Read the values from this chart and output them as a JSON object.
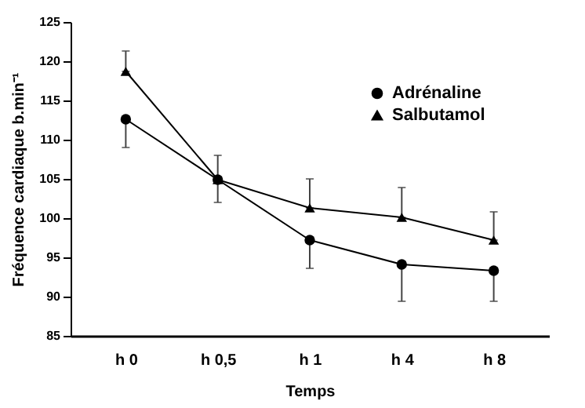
{
  "chart_data": {
    "type": "line",
    "xlabel": "Temps",
    "ylabel": "Fréquence cardiaque b.min⁻¹",
    "categories": [
      "h 0",
      "h 0,5",
      "h 1",
      "h 4",
      "h 8"
    ],
    "series": [
      {
        "name": "Adrénaline",
        "color": "#000000",
        "marker": "circle",
        "values": [
          112.6,
          104.9,
          97.2,
          94.1,
          93.3
        ],
        "errors": [
          [
            109,
            112.6
          ],
          [
            102,
            104.9
          ],
          [
            93.6,
            97.2
          ],
          [
            89.4,
            94.1
          ],
          [
            89.4,
            93.3
          ]
        ]
      },
      {
        "name": "Salbutamol",
        "color": "#000000",
        "marker": "triangle",
        "values": [
          118.7,
          104.9,
          101.3,
          100.1,
          97.2
        ],
        "errors": [
          [
            118.7,
            121.3
          ],
          [
            104.9,
            108
          ],
          [
            101.3,
            105
          ],
          [
            100.1,
            103.9
          ],
          [
            97.2,
            100.8
          ]
        ]
      }
    ],
    "ylim": [
      85,
      125
    ],
    "yticks": [
      85,
      90,
      95,
      100,
      105,
      110,
      115,
      120,
      125
    ],
    "grid": false,
    "legend": "top right"
  }
}
